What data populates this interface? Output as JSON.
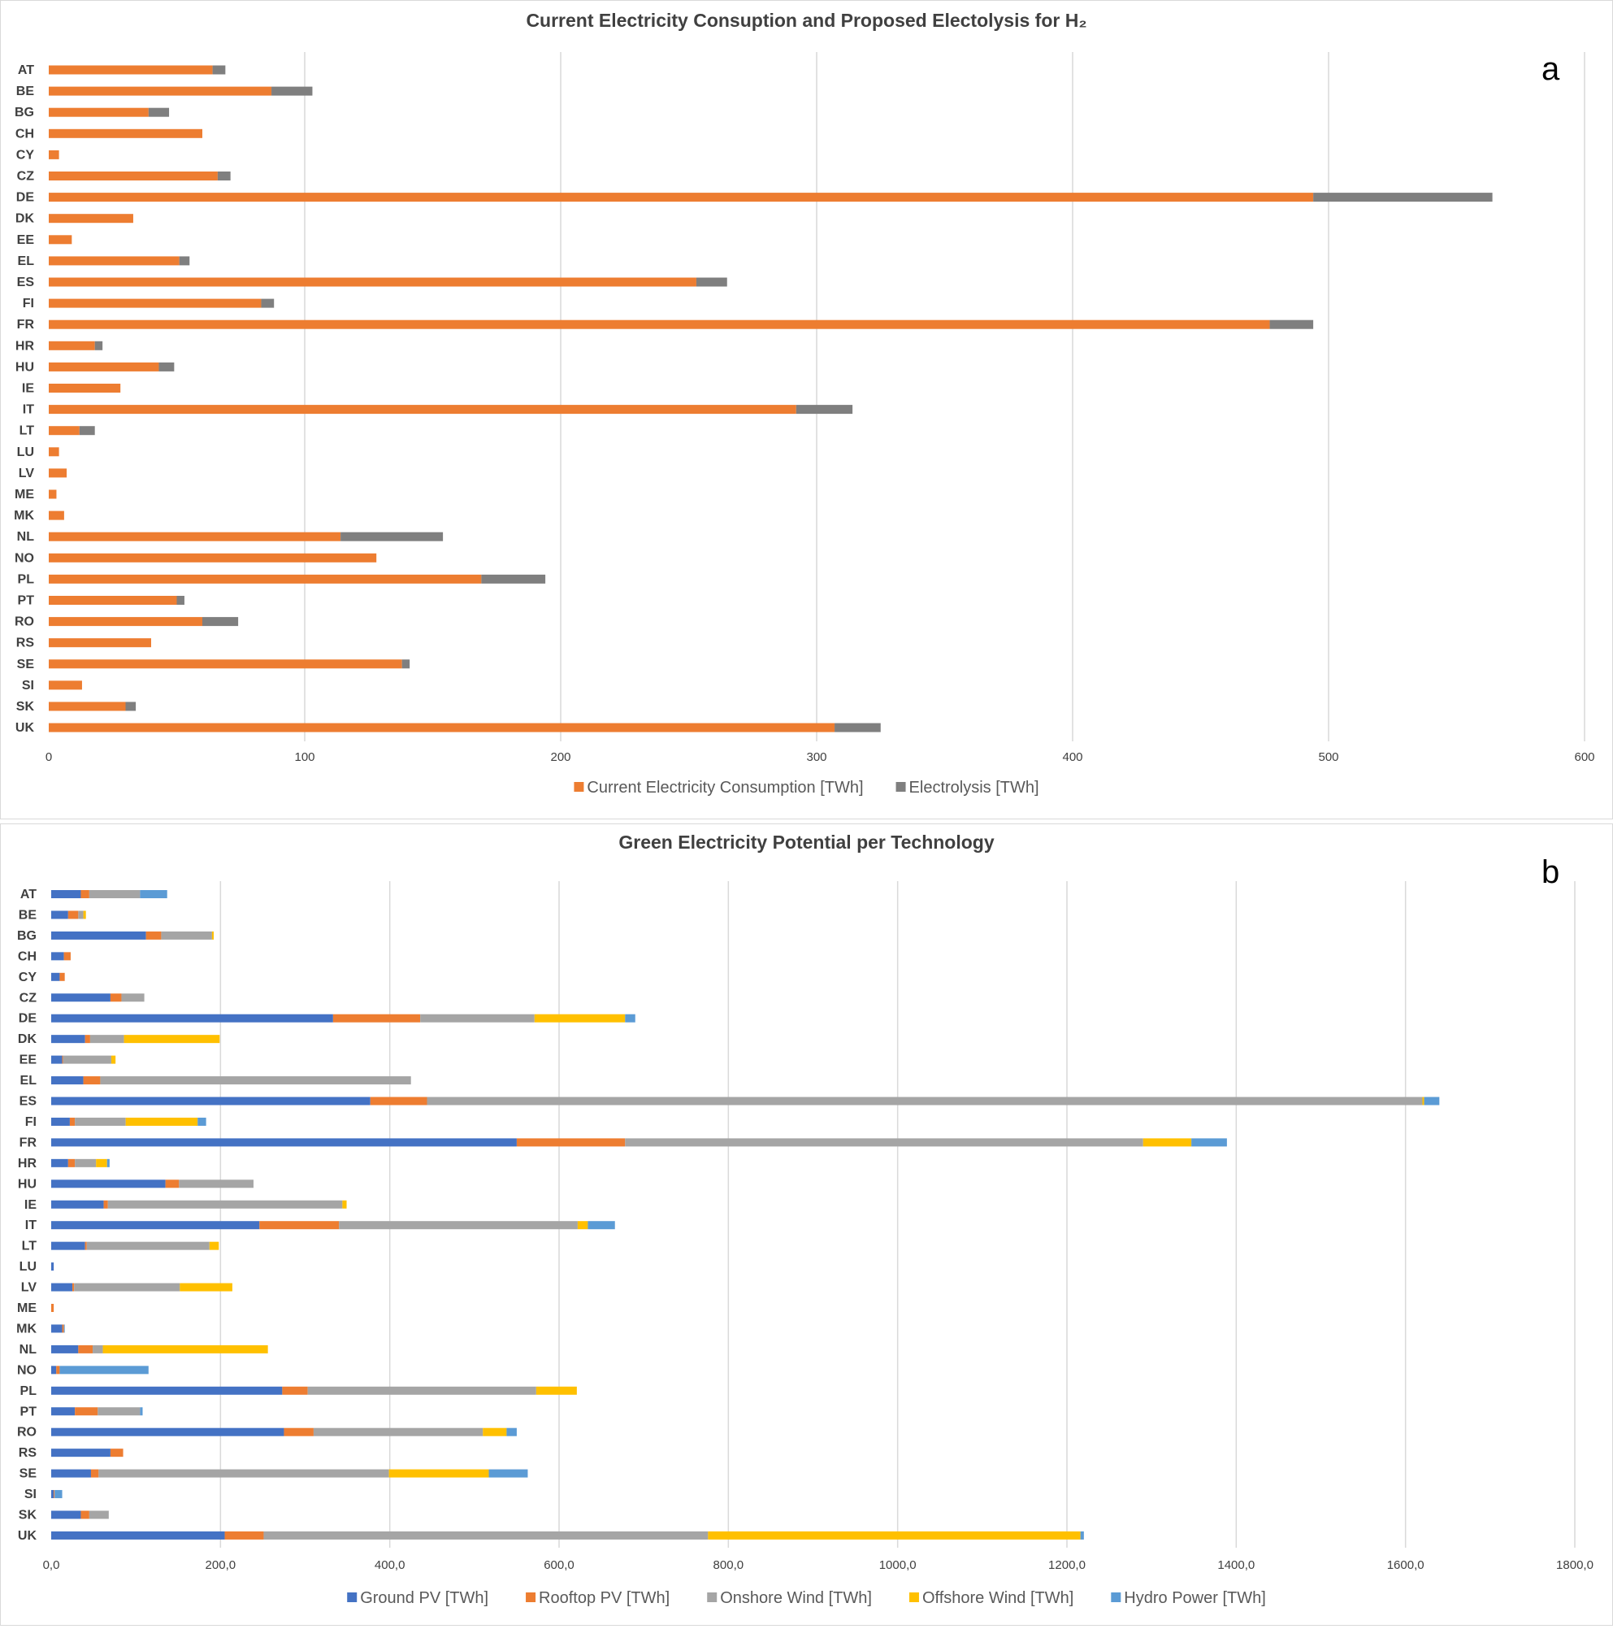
{
  "chart_data": [
    {
      "type": "bar",
      "orientation": "horizontal",
      "stacked": true,
      "title": "Current Electricity Consuption and Proposed Electolysis for H₂",
      "panel_label": "a",
      "categories": [
        "AT",
        "BE",
        "BG",
        "CH",
        "CY",
        "CZ",
        "DE",
        "DK",
        "EE",
        "EL",
        "ES",
        "FI",
        "FR",
        "HR",
        "HU",
        "IE",
        "IT",
        "LT",
        "LU",
        "LV",
        "ME",
        "MK",
        "NL",
        "NO",
        "PL",
        "PT",
        "RO",
        "RS",
        "SE",
        "SI",
        "SK",
        "UK"
      ],
      "series": [
        {
          "name": "Current Electricity Consumption [TWh]",
          "color": "#ED7D31",
          "values": [
            64,
            87,
            39,
            60,
            4,
            66,
            494,
            33,
            9,
            51,
            253,
            83,
            477,
            18,
            43,
            28,
            292,
            12,
            4,
            7,
            3,
            6,
            114,
            128,
            169,
            50,
            60,
            40,
            138,
            13,
            30,
            307
          ]
        },
        {
          "name": "Electrolysis [TWh]",
          "color": "#7F7F7F",
          "values": [
            5,
            16,
            8,
            0,
            0,
            5,
            70,
            0,
            0,
            4,
            12,
            5,
            17,
            3,
            6,
            0,
            22,
            6,
            0,
            0,
            0,
            0,
            40,
            0,
            25,
            3,
            14,
            0,
            3,
            0,
            4,
            18
          ]
        }
      ],
      "xlim": [
        0,
        600
      ],
      "xticks": [
        "0",
        "100",
        "200",
        "300",
        "400",
        "500",
        "600"
      ],
      "legend": "bottom",
      "grid": true
    },
    {
      "type": "bar",
      "orientation": "horizontal",
      "stacked": true,
      "title": "Green Electricity Potential per Technology",
      "panel_label": "b",
      "categories": [
        "AT",
        "BE",
        "BG",
        "CH",
        "CY",
        "CZ",
        "DE",
        "DK",
        "EE",
        "EL",
        "ES",
        "FI",
        "FR",
        "HR",
        "HU",
        "IE",
        "IT",
        "LT",
        "LU",
        "LV",
        "ME",
        "MK",
        "NL",
        "NO",
        "PL",
        "PT",
        "RO",
        "RS",
        "SE",
        "SI",
        "SK",
        "UK"
      ],
      "series": [
        {
          "name": "Ground PV [TWh]",
          "color": "#4472C4",
          "values": [
            35,
            20,
            112,
            15,
            10,
            70,
            333,
            40,
            13,
            38,
            377,
            22,
            550,
            20,
            135,
            62,
            246,
            40,
            3,
            25,
            0,
            13,
            32,
            6,
            273,
            28,
            275,
            70,
            47,
            3,
            35,
            205
          ]
        },
        {
          "name": "Rooftop PV [TWh]",
          "color": "#ED7D31",
          "values": [
            10,
            12,
            18,
            8,
            6,
            13,
            103,
            6,
            1,
            20,
            67,
            6,
            128,
            8,
            16,
            5,
            94,
            2,
            0,
            2,
            3,
            2,
            17,
            4,
            30,
            27,
            35,
            15,
            9,
            1,
            10,
            46
          ]
        },
        {
          "name": "Onshore Wind [TWh]",
          "color": "#A5A5A5",
          "values": [
            60,
            6,
            60,
            0,
            0,
            27,
            135,
            40,
            57,
            367,
            1176,
            60,
            612,
            25,
            88,
            277,
            282,
            145,
            0,
            125,
            0,
            0,
            12,
            0,
            270,
            50,
            200,
            0,
            343,
            0,
            23,
            525
          ]
        },
        {
          "name": "Offshore Wind [TWh]",
          "color": "#FFC000",
          "values": [
            0,
            3,
            2,
            0,
            0,
            0,
            107,
            113,
            5,
            0,
            2,
            85,
            57,
            13,
            0,
            5,
            12,
            11,
            0,
            62,
            0,
            0,
            195,
            0,
            48,
            0,
            28,
            0,
            118,
            0,
            0,
            440
          ]
        },
        {
          "name": "Hydro Power [TWh]",
          "color": "#5B9BD5",
          "values": [
            32,
            0,
            0,
            0,
            0,
            0,
            12,
            0,
            0,
            0,
            18,
            10,
            42,
            3,
            0,
            0,
            32,
            0,
            0,
            0,
            0,
            1,
            0,
            105,
            0,
            3,
            12,
            0,
            46,
            9,
            0,
            4
          ]
        }
      ],
      "xlim": [
        0,
        1800
      ],
      "xticks": [
        "0,0",
        "200,0",
        "400,0",
        "600,0",
        "800,0",
        "1000,0",
        "1200,0",
        "1400,0",
        "1600,0",
        "1800,0"
      ],
      "legend": "bottom",
      "grid": true
    }
  ]
}
